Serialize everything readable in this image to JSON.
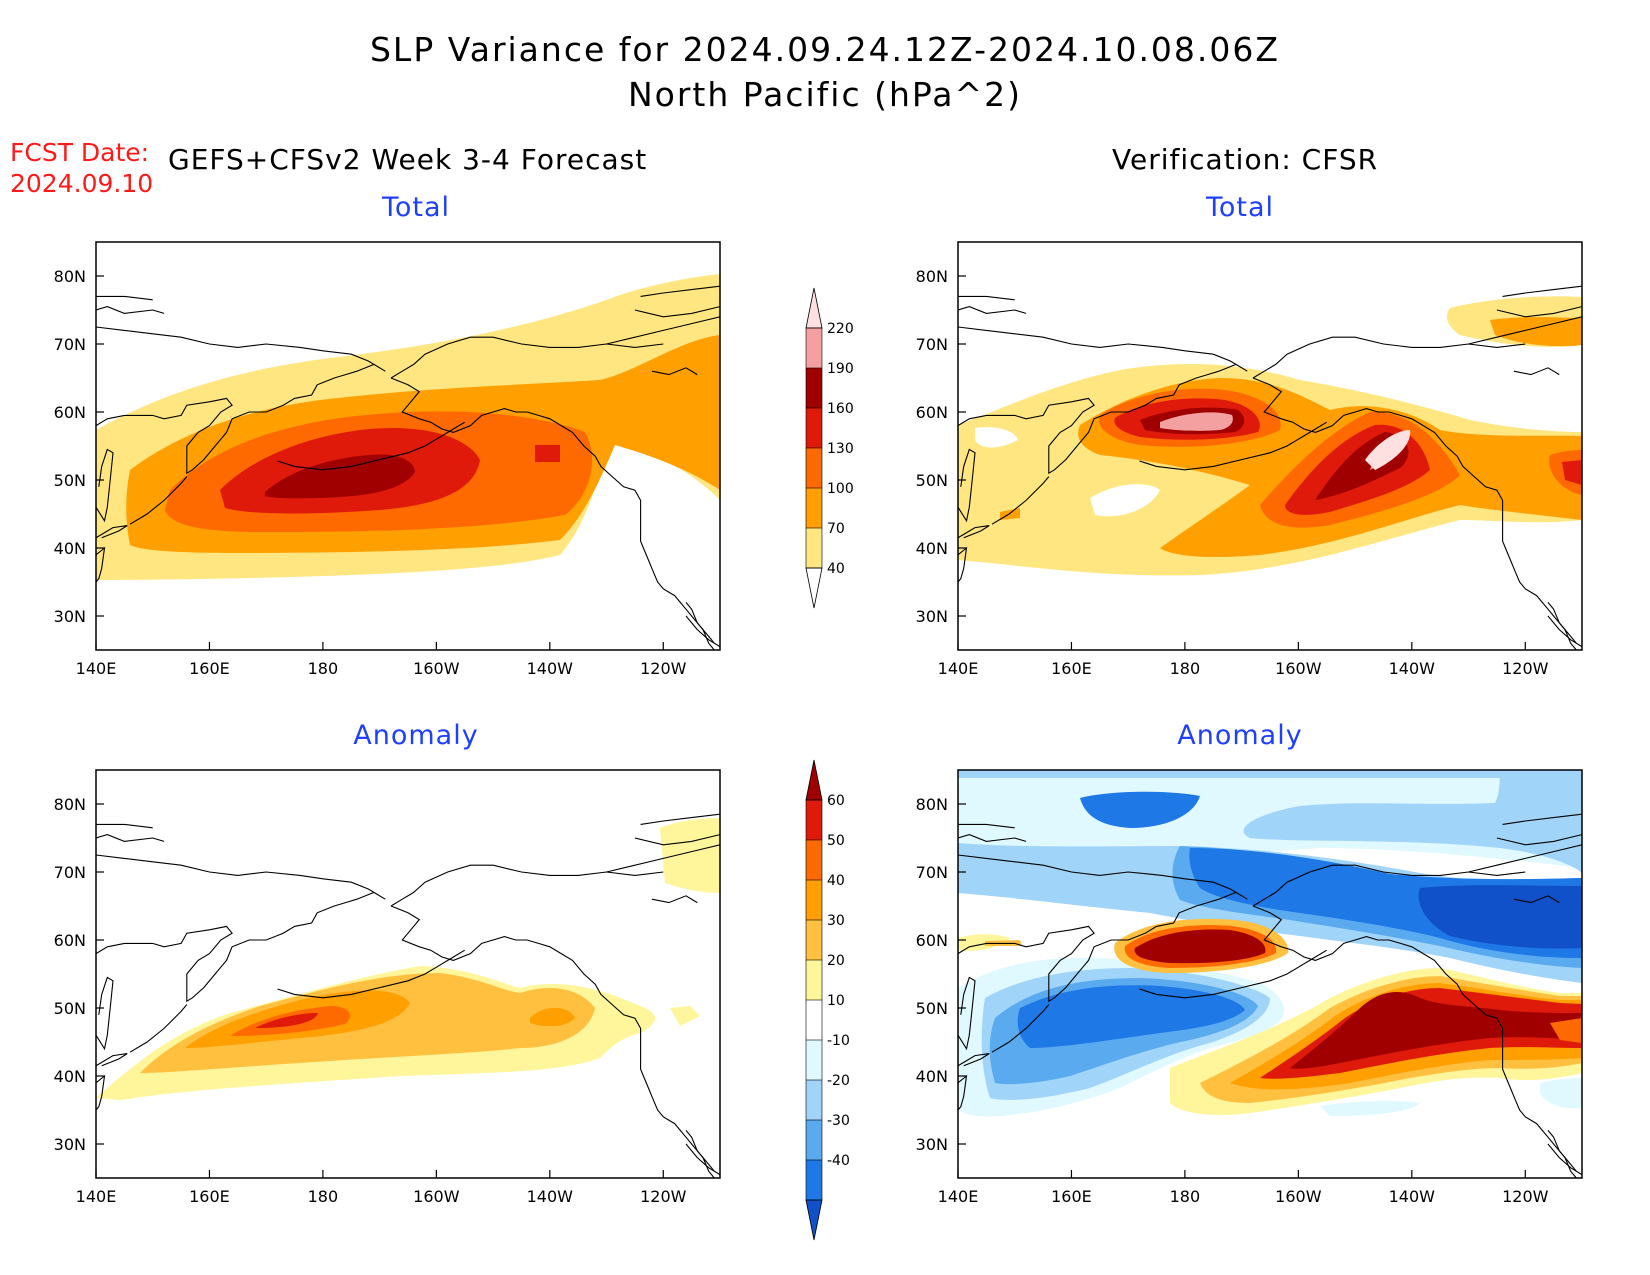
{
  "header": {
    "title_line1": "SLP Variance for 2024.09.24.12Z-2024.10.08.06Z",
    "title_line2": "North Pacific (hPa^2)",
    "fcst_label": "FCST Date:",
    "fcst_date": "2024.09.10",
    "left_column_title": "GEFS+CFSv2 Week 3-4 Forecast",
    "right_column_title": "Verification: CFSR"
  },
  "panels": [
    {
      "id": "forecast-total",
      "title": "Total"
    },
    {
      "id": "verification-total",
      "title": "Total"
    },
    {
      "id": "forecast-anomaly",
      "title": "Anomaly"
    },
    {
      "id": "verification-anomaly",
      "title": "Anomaly"
    }
  ],
  "axes": {
    "lon_ticks": [
      "140E",
      "160E",
      "180",
      "160W",
      "140W",
      "120W"
    ],
    "lat_ticks": [
      "80N",
      "70N",
      "60N",
      "50N",
      "40N",
      "30N"
    ]
  },
  "colorbars": {
    "total": {
      "levels": [
        "220",
        "190",
        "160",
        "130",
        "100",
        "70",
        "40"
      ],
      "colors": [
        "#ffe0e0",
        "#f4a0a0",
        "#a00000",
        "#e01a0a",
        "#ff6a00",
        "#ff9f00",
        "#ffe680"
      ]
    },
    "anomaly": {
      "levels": [
        "60",
        "50",
        "40",
        "30",
        "20",
        "10",
        "-10",
        "-20",
        "-30",
        "-40"
      ],
      "colors": [
        "#a00000",
        "#e01a0a",
        "#ff6a00",
        "#ff9f00",
        "#ffc040",
        "#fff59a",
        "#ffffff",
        "#e0f8ff",
        "#a0d4f8",
        "#5aaaf0",
        "#1e78e6",
        "#1050c8"
      ]
    }
  }
}
